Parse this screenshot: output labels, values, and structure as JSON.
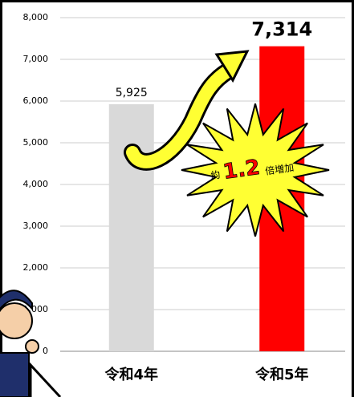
{
  "chart_data": {
    "type": "bar",
    "categories": [
      "令和4年",
      "令和5年"
    ],
    "values": [
      5925,
      7314
    ],
    "value_labels": [
      "5,925",
      "7,314"
    ],
    "colors": [
      "#d9d9d9",
      "#ff0000"
    ],
    "ylim": [
      0,
      8000
    ],
    "yticks": [
      0,
      {
        "value": 1000,
        "label": "1,000"
      },
      {
        "value": 2000,
        "label": "2,000"
      },
      {
        "value": 3000,
        "label": "3,000"
      },
      {
        "value": 4000,
        "label": "4,000"
      },
      {
        "value": 5000,
        "label": "5,000"
      },
      {
        "value": 6000,
        "label": "6,000"
      },
      {
        "value": 7000,
        "label": "7,000"
      },
      {
        "value": 8000,
        "label": "8,000"
      }
    ],
    "grid": true,
    "annotation": [
      "約",
      "1.2",
      "倍増加"
    ]
  }
}
